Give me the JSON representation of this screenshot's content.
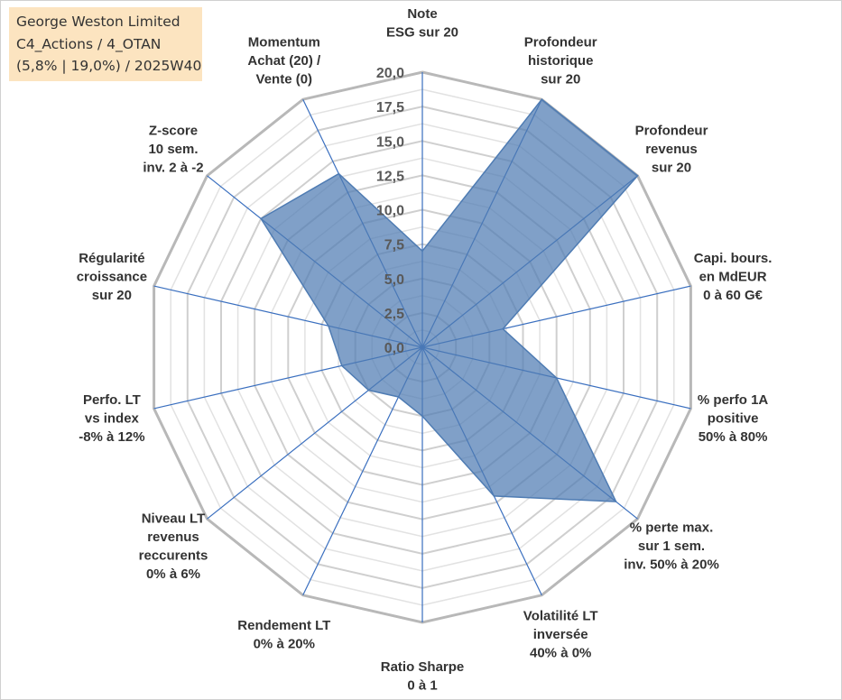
{
  "info_box": {
    "line1": "George Weston Limited",
    "line2": "C4_Actions / 4_OTAN",
    "line3": "(5,8% | 19,0%) / 2025W40"
  },
  "chart_data": {
    "type": "radar",
    "title": "",
    "rmin": 0,
    "rmax": 20,
    "ticks": [
      0,
      2.5,
      5,
      7.5,
      10,
      12.5,
      15,
      17.5,
      20
    ],
    "tick_labels": [
      "0,0",
      "2,5",
      "5,0",
      "7,5",
      "10,0",
      "12,5",
      "15,0",
      "17,5",
      "20,0"
    ],
    "axes": [
      [
        "Note",
        "ESG sur 20"
      ],
      [
        "Profondeur",
        "historique",
        "sur 20"
      ],
      [
        "Profondeur",
        "revenus",
        "sur 20"
      ],
      [
        "Capi. bours.",
        "en MdEUR",
        "0 à 60 G€"
      ],
      [
        "% perfo 1A",
        "positive",
        "50% à 80%"
      ],
      [
        "% perte max.",
        "sur 1 sem.",
        "inv. 50% à 20%"
      ],
      [
        "Volatilité LT",
        "inversée",
        "40% à 0%"
      ],
      [
        "Ratio Sharpe",
        "0 à 1"
      ],
      [
        "Rendement LT",
        "0% à 20%"
      ],
      [
        "Niveau LT",
        "revenus",
        "reccurents",
        "0% à 6%"
      ],
      [
        "Perfo. LT",
        "vs index",
        "-8% à 12%"
      ],
      [
        "Régularité",
        "croissance",
        "sur 20"
      ],
      [
        "Z-score",
        "10 sem.",
        "inv. 2 à -2"
      ],
      [
        "Momentum",
        "Achat (20) /",
        "Vente (0)"
      ]
    ],
    "series": [
      {
        "name": "George Weston Limited",
        "values": [
          7,
          20,
          20,
          6,
          10,
          18,
          12,
          5,
          4,
          5,
          6,
          7,
          15,
          14
        ],
        "color": "#4f7cb3"
      }
    ],
    "colors": {
      "grid": "#c0c0c0",
      "spoke": "#3a6fbf",
      "fill": "#4f7cb3"
    }
  }
}
